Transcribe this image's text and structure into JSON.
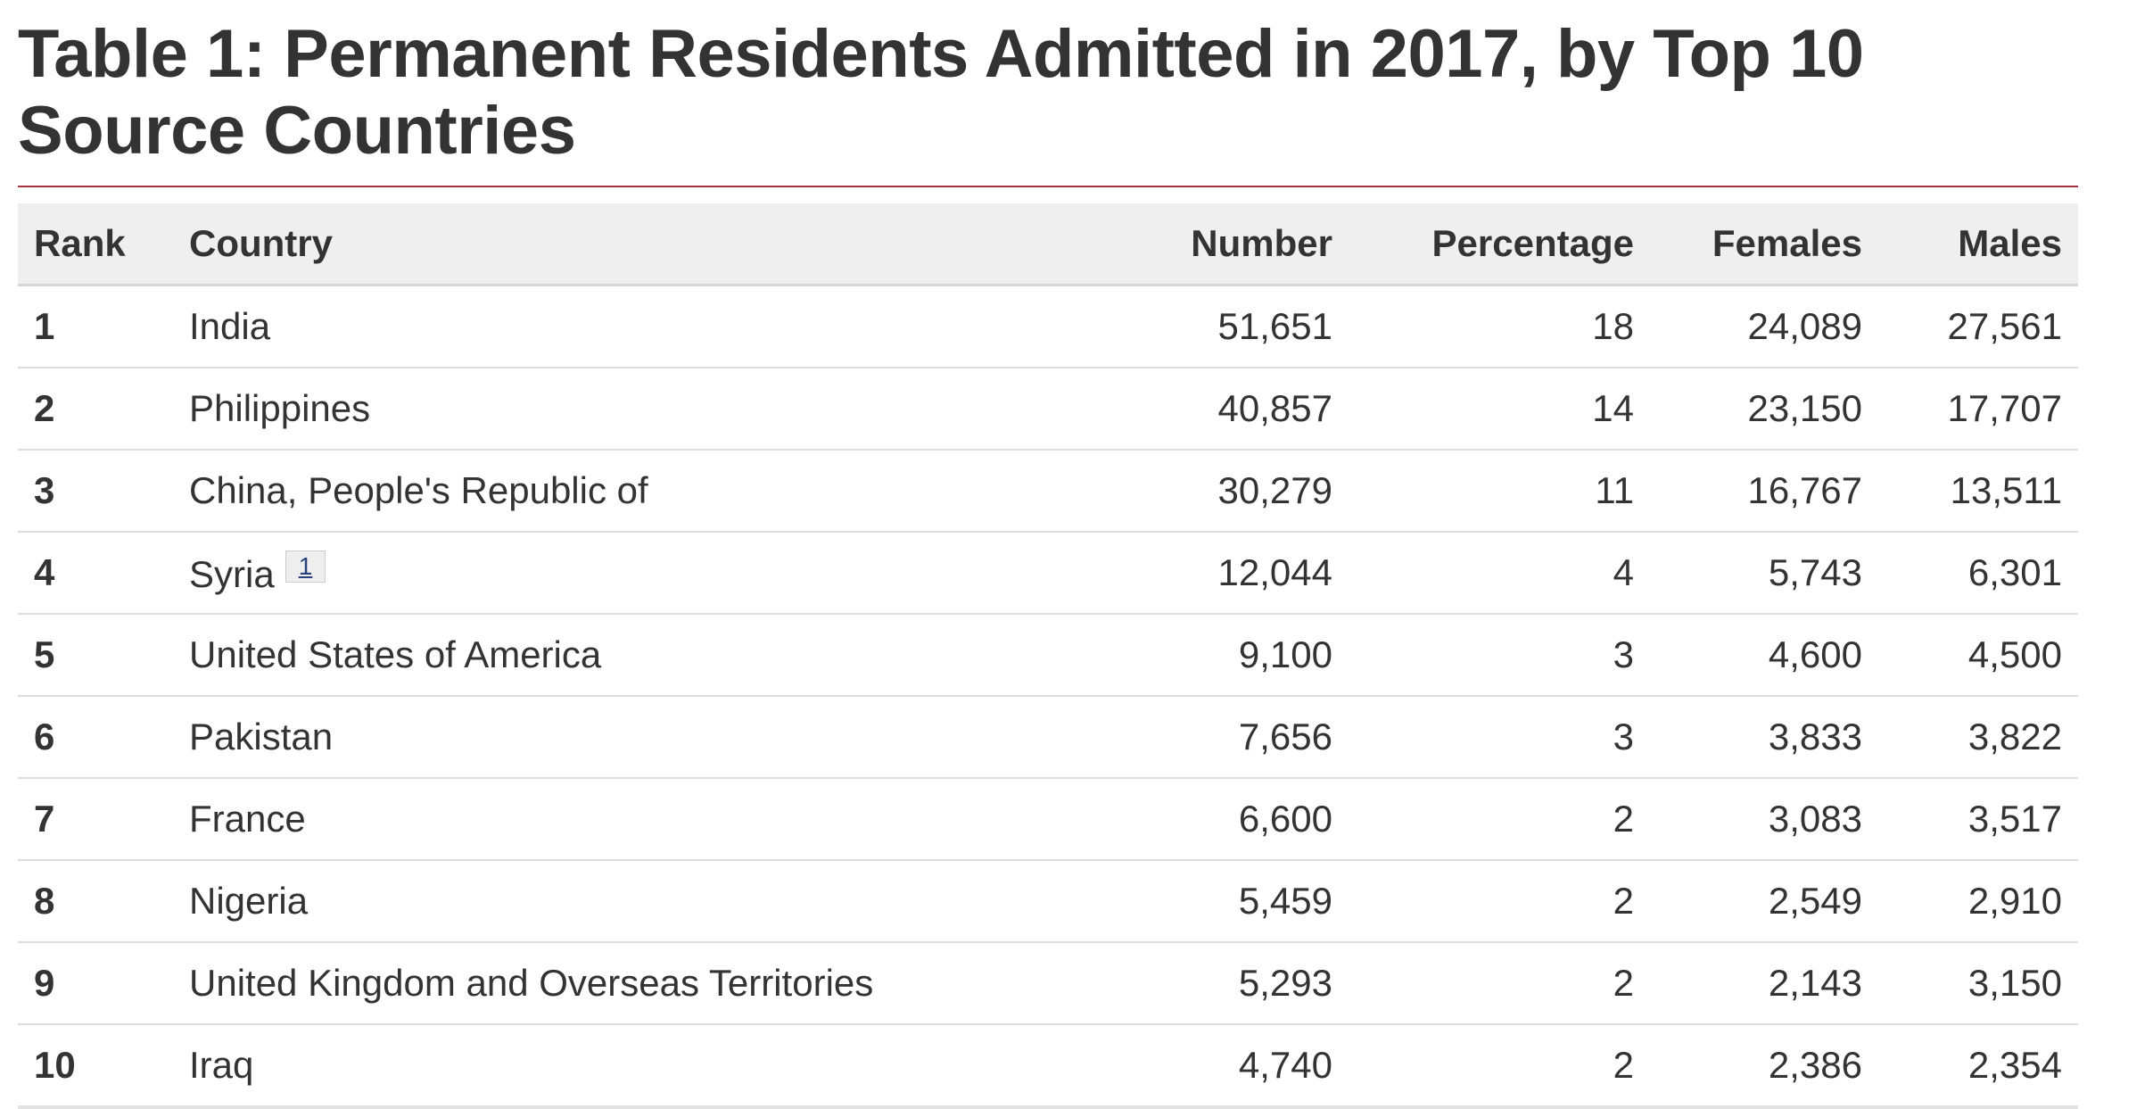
{
  "table": {
    "title": "Table 1: Permanent Residents Admitted in 2017, by Top 10 Source Countries",
    "columns": [
      "Rank",
      "Country",
      "Number",
      "Percentage",
      "Females",
      "Males"
    ],
    "rows": [
      {
        "rank": "1",
        "country": "India",
        "footnote": "",
        "number": "51,651",
        "percentage": "18",
        "females": "24,089",
        "males": "27,561"
      },
      {
        "rank": "2",
        "country": "Philippines",
        "footnote": "",
        "number": "40,857",
        "percentage": "14",
        "females": "23,150",
        "males": "17,707"
      },
      {
        "rank": "3",
        "country": "China, People's Republic of",
        "footnote": "",
        "number": "30,279",
        "percentage": "11",
        "females": "16,767",
        "males": "13,511"
      },
      {
        "rank": "4",
        "country": "Syria",
        "footnote": "1",
        "number": "12,044",
        "percentage": "4",
        "females": "5,743",
        "males": "6,301"
      },
      {
        "rank": "5",
        "country": "United States of America",
        "footnote": "",
        "number": "9,100",
        "percentage": "3",
        "females": "4,600",
        "males": "4,500"
      },
      {
        "rank": "6",
        "country": "Pakistan",
        "footnote": "",
        "number": "7,656",
        "percentage": "3",
        "females": "3,833",
        "males": "3,822"
      },
      {
        "rank": "7",
        "country": "France",
        "footnote": "",
        "number": "6,600",
        "percentage": "2",
        "females": "3,083",
        "males": "3,517"
      },
      {
        "rank": "8",
        "country": "Nigeria",
        "footnote": "",
        "number": "5,459",
        "percentage": "2",
        "females": "2,549",
        "males": "2,910"
      },
      {
        "rank": "9",
        "country": "United Kingdom and Overseas Territories",
        "footnote": "",
        "number": "5,293",
        "percentage": "2",
        "females": "2,143",
        "males": "3,150"
      },
      {
        "rank": "10",
        "country": "Iraq",
        "footnote": "",
        "number": "4,740",
        "percentage": "2",
        "females": "2,386",
        "males": "2,354"
      }
    ]
  },
  "colors": {
    "title_rule": "#a8323e",
    "header_background": "#efefef",
    "text": "#333333",
    "footnote_link": "#27437d"
  }
}
